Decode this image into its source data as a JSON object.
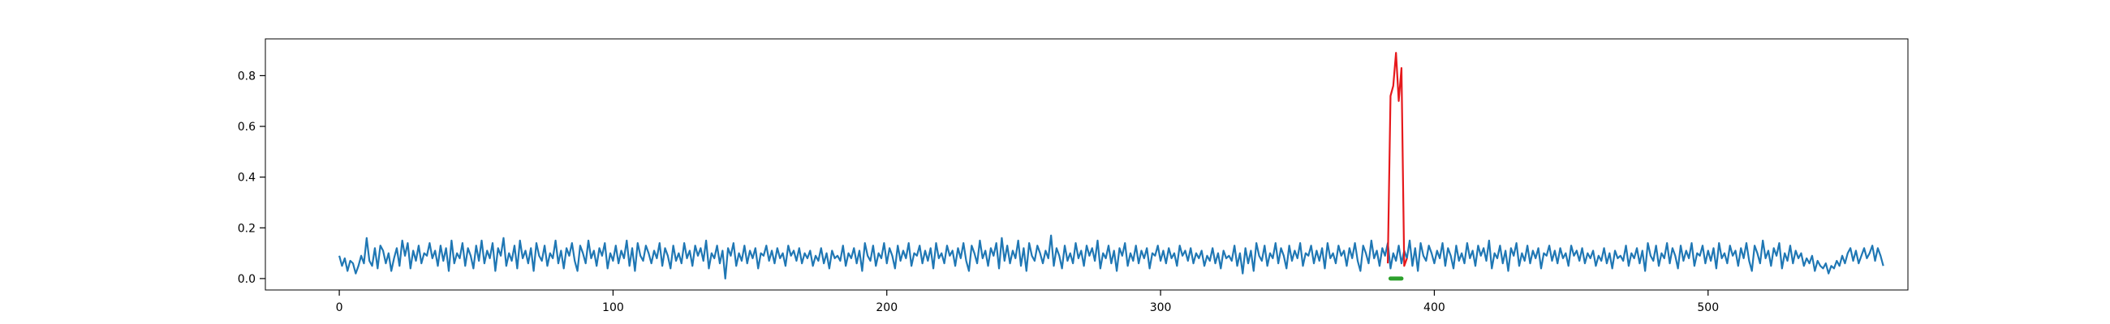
{
  "chart_data": {
    "type": "line",
    "title": "",
    "xlabel": "",
    "ylabel": "",
    "xlim": [
      -27,
      573
    ],
    "ylim": [
      -0.045,
      0.945
    ],
    "x_ticks": [
      {
        "value": 0,
        "label": "0"
      },
      {
        "value": 100,
        "label": "100"
      },
      {
        "value": 200,
        "label": "200"
      },
      {
        "value": 300,
        "label": "300"
      },
      {
        "value": 400,
        "label": "400"
      },
      {
        "value": 500,
        "label": "500"
      }
    ],
    "y_ticks": [
      {
        "value": 0.0,
        "label": "0.0"
      },
      {
        "value": 0.2,
        "label": "0.2"
      },
      {
        "value": 0.4,
        "label": "0.4"
      },
      {
        "value": 0.6,
        "label": "0.6"
      },
      {
        "value": 0.8,
        "label": "0.8"
      }
    ],
    "grid": false,
    "legend": "none",
    "series": [
      {
        "color": "#1f77b4",
        "x_start": 0,
        "values": [
          0.09,
          0.05,
          0.08,
          0.03,
          0.07,
          0.06,
          0.02,
          0.05,
          0.09,
          0.06,
          0.16,
          0.07,
          0.05,
          0.12,
          0.04,
          0.13,
          0.11,
          0.06,
          0.1,
          0.03,
          0.08,
          0.12,
          0.05,
          0.15,
          0.09,
          0.14,
          0.04,
          0.11,
          0.07,
          0.13,
          0.06,
          0.1,
          0.09,
          0.14,
          0.08,
          0.11,
          0.05,
          0.13,
          0.07,
          0.12,
          0.03,
          0.15,
          0.06,
          0.1,
          0.08,
          0.14,
          0.05,
          0.12,
          0.09,
          0.04,
          0.13,
          0.07,
          0.15,
          0.06,
          0.11,
          0.08,
          0.14,
          0.03,
          0.12,
          0.09,
          0.16,
          0.05,
          0.1,
          0.07,
          0.13,
          0.04,
          0.15,
          0.08,
          0.11,
          0.06,
          0.12,
          0.03,
          0.14,
          0.09,
          0.07,
          0.13,
          0.05,
          0.1,
          0.08,
          0.15,
          0.06,
          0.11,
          0.04,
          0.12,
          0.09,
          0.14,
          0.07,
          0.03,
          0.13,
          0.1,
          0.06,
          0.15,
          0.08,
          0.11,
          0.05,
          0.12,
          0.09,
          0.14,
          0.04,
          0.1,
          0.07,
          0.13,
          0.06,
          0.11,
          0.08,
          0.15,
          0.05,
          0.12,
          0.03,
          0.14,
          0.09,
          0.07,
          0.13,
          0.1,
          0.06,
          0.11,
          0.08,
          0.14,
          0.05,
          0.12,
          0.09,
          0.04,
          0.13,
          0.07,
          0.1,
          0.06,
          0.14,
          0.08,
          0.11,
          0.05,
          0.13,
          0.09,
          0.12,
          0.07,
          0.15,
          0.04,
          0.1,
          0.08,
          0.13,
          0.06,
          0.11,
          0.0,
          0.12,
          0.09,
          0.14,
          0.05,
          0.1,
          0.07,
          0.13,
          0.06,
          0.11,
          0.08,
          0.12,
          0.04,
          0.1,
          0.09,
          0.13,
          0.07,
          0.11,
          0.06,
          0.12,
          0.08,
          0.1,
          0.05,
          0.13,
          0.09,
          0.11,
          0.07,
          0.12,
          0.06,
          0.1,
          0.08,
          0.11,
          0.05,
          0.09,
          0.07,
          0.12,
          0.06,
          0.1,
          0.04,
          0.11,
          0.08,
          0.09,
          0.07,
          0.13,
          0.05,
          0.1,
          0.08,
          0.12,
          0.06,
          0.11,
          0.03,
          0.14,
          0.09,
          0.07,
          0.13,
          0.05,
          0.1,
          0.08,
          0.14,
          0.06,
          0.12,
          0.09,
          0.04,
          0.13,
          0.07,
          0.11,
          0.08,
          0.14,
          0.05,
          0.1,
          0.09,
          0.13,
          0.06,
          0.11,
          0.07,
          0.12,
          0.04,
          0.14,
          0.08,
          0.1,
          0.06,
          0.13,
          0.09,
          0.11,
          0.05,
          0.12,
          0.08,
          0.14,
          0.07,
          0.03,
          0.13,
          0.1,
          0.06,
          0.15,
          0.08,
          0.11,
          0.05,
          0.12,
          0.09,
          0.14,
          0.04,
          0.16,
          0.07,
          0.13,
          0.06,
          0.11,
          0.08,
          0.15,
          0.05,
          0.12,
          0.03,
          0.14,
          0.09,
          0.07,
          0.13,
          0.1,
          0.06,
          0.11,
          0.08,
          0.17,
          0.05,
          0.12,
          0.09,
          0.04,
          0.13,
          0.07,
          0.1,
          0.06,
          0.14,
          0.08,
          0.11,
          0.05,
          0.13,
          0.09,
          0.12,
          0.07,
          0.15,
          0.04,
          0.1,
          0.08,
          0.13,
          0.06,
          0.11,
          0.03,
          0.12,
          0.09,
          0.14,
          0.05,
          0.1,
          0.07,
          0.13,
          0.06,
          0.11,
          0.08,
          0.12,
          0.04,
          0.1,
          0.09,
          0.13,
          0.07,
          0.11,
          0.06,
          0.12,
          0.08,
          0.1,
          0.05,
          0.13,
          0.09,
          0.11,
          0.07,
          0.12,
          0.06,
          0.1,
          0.08,
          0.11,
          0.05,
          0.09,
          0.07,
          0.12,
          0.06,
          0.1,
          0.04,
          0.11,
          0.08,
          0.09,
          0.07,
          0.13,
          0.05,
          0.1,
          0.02,
          0.12,
          0.06,
          0.11,
          0.03,
          0.14,
          0.09,
          0.07,
          0.13,
          0.05,
          0.1,
          0.08,
          0.14,
          0.06,
          0.12,
          0.09,
          0.04,
          0.13,
          0.07,
          0.11,
          0.08,
          0.14,
          0.05,
          0.1,
          0.09,
          0.13,
          0.06,
          0.11,
          0.07,
          0.12,
          0.04,
          0.14,
          0.08,
          0.1,
          0.06,
          0.13,
          0.09,
          0.11,
          0.05,
          0.12,
          0.08,
          0.14,
          0.07,
          0.03,
          0.13,
          0.1,
          0.06,
          0.15,
          0.08,
          0.11,
          0.05,
          0.12,
          0.09,
          0.14,
          0.04,
          0.1,
          0.07,
          0.13,
          0.06,
          0.11,
          0.08,
          0.15,
          0.05,
          0.12,
          0.03,
          0.14,
          0.09,
          0.07,
          0.13,
          0.1,
          0.06,
          0.11,
          0.08,
          0.14,
          0.05,
          0.12,
          0.09,
          0.04,
          0.13,
          0.07,
          0.1,
          0.06,
          0.14,
          0.08,
          0.11,
          0.05,
          0.13,
          0.09,
          0.12,
          0.07,
          0.15,
          0.04,
          0.1,
          0.08,
          0.13,
          0.06,
          0.11,
          0.03,
          0.12,
          0.09,
          0.14,
          0.05,
          0.1,
          0.07,
          0.13,
          0.06,
          0.11,
          0.08,
          0.12,
          0.04,
          0.1,
          0.09,
          0.13,
          0.07,
          0.11,
          0.06,
          0.12,
          0.08,
          0.1,
          0.05,
          0.13,
          0.09,
          0.11,
          0.07,
          0.12,
          0.06,
          0.1,
          0.08,
          0.11,
          0.05,
          0.09,
          0.07,
          0.12,
          0.06,
          0.1,
          0.04,
          0.11,
          0.08,
          0.09,
          0.07,
          0.13,
          0.05,
          0.1,
          0.08,
          0.12,
          0.06,
          0.11,
          0.03,
          0.14,
          0.09,
          0.07,
          0.13,
          0.05,
          0.1,
          0.08,
          0.14,
          0.06,
          0.12,
          0.09,
          0.04,
          0.13,
          0.07,
          0.11,
          0.08,
          0.14,
          0.05,
          0.1,
          0.09,
          0.13,
          0.06,
          0.11,
          0.07,
          0.12,
          0.04,
          0.14,
          0.08,
          0.1,
          0.06,
          0.13,
          0.09,
          0.11,
          0.05,
          0.12,
          0.08,
          0.14,
          0.07,
          0.03,
          0.13,
          0.1,
          0.06,
          0.15,
          0.08,
          0.11,
          0.05,
          0.12,
          0.09,
          0.14,
          0.04,
          0.1,
          0.07,
          0.13,
          0.06,
          0.11,
          0.08,
          0.1,
          0.05,
          0.08,
          0.06,
          0.09,
          0.03,
          0.07,
          0.05,
          0.04,
          0.06,
          0.02,
          0.05,
          0.04,
          0.07,
          0.05,
          0.09,
          0.06,
          0.1,
          0.12,
          0.07,
          0.11,
          0.06,
          0.09,
          0.12,
          0.08,
          0.1,
          0.13,
          0.07,
          0.12,
          0.09,
          0.05
        ]
      },
      {
        "color": "#e6191c",
        "points": [
          [
            383,
            0.06
          ],
          [
            384,
            0.72
          ],
          [
            385,
            0.76
          ],
          [
            386,
            0.89
          ],
          [
            387,
            0.7
          ],
          [
            388,
            0.83
          ],
          [
            389,
            0.05
          ],
          [
            390,
            0.08
          ]
        ]
      },
      {
        "color": "#2ca02c",
        "points": [
          [
            384,
            0.0
          ],
          [
            385,
            0.0
          ],
          [
            386,
            0.0
          ],
          [
            387,
            0.0
          ],
          [
            388,
            0.0
          ]
        ]
      }
    ]
  }
}
